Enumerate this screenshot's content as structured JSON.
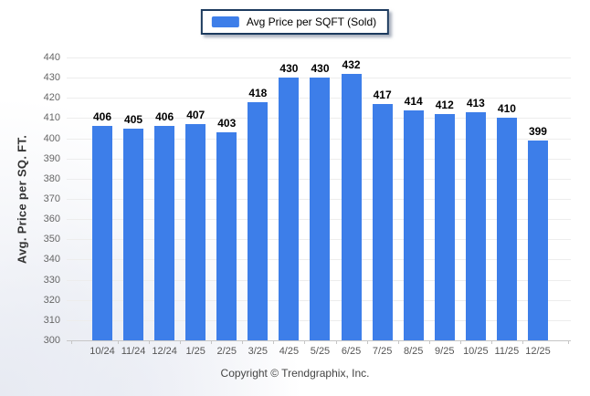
{
  "chart_data": {
    "type": "bar",
    "series_name": "Avg Price per SQFT (Sold)",
    "categories": [
      "10/24",
      "11/24",
      "12/24",
      "1/25",
      "2/25",
      "3/25",
      "4/25",
      "5/25",
      "6/25",
      "7/25",
      "8/25",
      "9/25",
      "10/25",
      "11/25",
      "12/25"
    ],
    "values": [
      406,
      405,
      406,
      407,
      403,
      418,
      430,
      430,
      432,
      417,
      414,
      412,
      413,
      410,
      399
    ],
    "ylabel": "Avg. Price per SQ. FT.",
    "ylim": [
      300,
      440
    ],
    "ytick_step": 10,
    "bar_color": "#3d7ee9",
    "grid": true,
    "legend_position": "top-center",
    "value_labels": true
  },
  "footer": {
    "copyright": "Copyright © Trendgraphix, Inc."
  }
}
